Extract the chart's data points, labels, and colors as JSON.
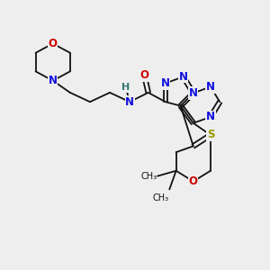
{
  "bg_color": "#eeeeee",
  "bond_color": "#111111",
  "bond_lw": 1.3,
  "dbl_off": 0.1,
  "atom_colors": {
    "N": "#1010dd",
    "O": "#cc0000",
    "S": "#999900",
    "H": "#337777",
    "C": "#111111"
  },
  "fs": 8.5,
  "figsize": [
    3.0,
    3.0
  ],
  "dpi": 100,
  "xlim": [
    0,
    10
  ],
  "ylim": [
    0,
    10
  ]
}
